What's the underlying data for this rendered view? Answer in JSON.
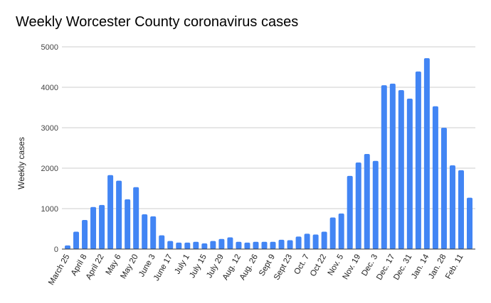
{
  "chart_data": {
    "type": "bar",
    "title": "Weekly Worcester County coronavirus cases",
    "xlabel": "",
    "ylabel": "Weekly cases",
    "ylim": [
      0,
      5000
    ],
    "yticks": [
      "0",
      "1000",
      "2000",
      "3000",
      "4000",
      "5000"
    ],
    "grid": true,
    "bar_color": "#4285f4",
    "categories": [
      "March 25",
      "",
      "April 8",
      "",
      "April 22",
      "",
      "May 6",
      "",
      "May 20",
      "",
      "June 3",
      "",
      "June 17",
      "",
      "July 1",
      "",
      "July 15",
      "",
      "July 29",
      "",
      "Aug. 12",
      "",
      "Aug. 26",
      "",
      "Sept 9",
      "",
      "Sept 23",
      "",
      "Oct. 7",
      "",
      "Oct 22",
      "",
      "Nov. 5",
      "",
      "Nov. 19",
      "",
      "Dec. 3",
      "",
      "Dec. 17",
      "",
      "Dec. 31",
      "",
      "Jan. 14",
      "",
      "Jan. 28",
      "",
      "Feb. 11",
      "",
      ""
    ],
    "values": [
      90,
      430,
      720,
      1040,
      1090,
      1830,
      1690,
      1230,
      1530,
      860,
      810,
      340,
      200,
      160,
      160,
      180,
      140,
      200,
      250,
      290,
      180,
      160,
      180,
      180,
      180,
      230,
      220,
      310,
      380,
      360,
      430,
      780,
      880,
      1810,
      2140,
      2350,
      2180,
      4050,
      4090,
      3930,
      3720,
      4390,
      4720,
      3530,
      3000,
      2070,
      1950,
      1270,
      0
    ]
  }
}
